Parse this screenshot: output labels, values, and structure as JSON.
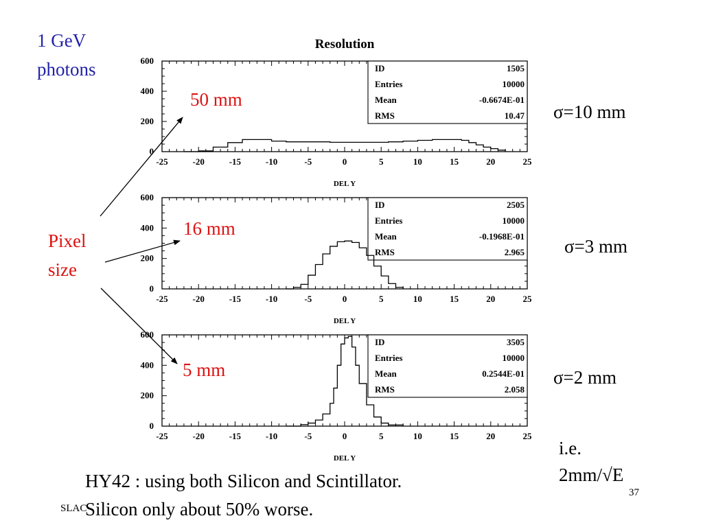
{
  "title": "Resolution",
  "energy_label": [
    "1 GeV",
    "photons"
  ],
  "pixel_label": [
    "Pixel",
    "size"
  ],
  "sizes": [
    "50 mm",
    "16 mm",
    "5 mm"
  ],
  "sigmas": [
    "σ=10 mm",
    "σ=3 mm",
    "σ=2 mm"
  ],
  "note": [
    "i.e.",
    "2mm/√E"
  ],
  "footer": [
    "HY42 : using both Silicon and Scintillator.",
    "Silicon only about 50% worse."
  ],
  "slac": "SLAC",
  "page_number": "37",
  "colors": {
    "blue": "#2222aa",
    "red": "#dd1111"
  },
  "chart_data": [
    {
      "type": "area",
      "xlabel": "DEL Y",
      "xlim": [
        -25,
        25
      ],
      "ylim": [
        0,
        600
      ],
      "xticks": [
        "-25",
        "-20",
        "-15",
        "-10",
        "-5",
        "0",
        "5",
        "10",
        "15",
        "20",
        "25"
      ],
      "yticks": [
        "600",
        "400",
        "200",
        "0"
      ],
      "stats": [
        [
          "ID",
          "1505"
        ],
        [
          "Entries",
          "10000"
        ],
        [
          "Mean",
          "-0.6674E-01"
        ],
        [
          "RMS",
          "10.47"
        ]
      ],
      "x": [
        -22,
        -20,
        -18,
        -16,
        -14,
        -12,
        -10,
        -8,
        -6,
        -4,
        -2,
        0,
        2,
        4,
        6,
        8,
        10,
        12,
        14,
        16,
        17,
        18,
        19,
        20,
        21,
        22
      ],
      "y": [
        0,
        5,
        30,
        60,
        80,
        80,
        70,
        65,
        65,
        65,
        62,
        62,
        62,
        62,
        65,
        70,
        75,
        80,
        80,
        75,
        60,
        45,
        30,
        20,
        10,
        0
      ]
    },
    {
      "type": "area",
      "xlabel": "DEL Y",
      "xlim": [
        -25,
        25
      ],
      "ylim": [
        0,
        600
      ],
      "xticks": [
        "-25",
        "-20",
        "-15",
        "-10",
        "-5",
        "0",
        "5",
        "10",
        "15",
        "20",
        "25"
      ],
      "yticks": [
        "600",
        "400",
        "200",
        "0"
      ],
      "stats": [
        [
          "ID",
          "2505"
        ],
        [
          "Entries",
          "10000"
        ],
        [
          "Mean",
          "-0.1968E-01"
        ],
        [
          "RMS",
          "2.965"
        ]
      ],
      "x": [
        -8,
        -7,
        -6,
        -5,
        -4,
        -3,
        -2,
        -1,
        0,
        1,
        2,
        3,
        4,
        5,
        6,
        7,
        8
      ],
      "y": [
        0,
        10,
        30,
        90,
        160,
        230,
        280,
        310,
        315,
        305,
        270,
        220,
        150,
        85,
        35,
        10,
        0
      ]
    },
    {
      "type": "area",
      "xlabel": "DEL Y",
      "xlim": [
        -25,
        25
      ],
      "ylim": [
        0,
        600
      ],
      "xticks": [
        "-25",
        "-20",
        "-15",
        "-10",
        "-5",
        "0",
        "5",
        "10",
        "15",
        "20",
        "25"
      ],
      "yticks": [
        "600",
        "400",
        "200",
        "0"
      ],
      "stats": [
        [
          "ID",
          "3505"
        ],
        [
          "Entries",
          "10000"
        ],
        [
          "Mean",
          "0.2544E-01"
        ],
        [
          "RMS",
          "2.058"
        ]
      ],
      "x": [
        -8,
        -6,
        -5,
        -4,
        -3,
        -2,
        -1.5,
        -1,
        -0.5,
        0,
        0.5,
        1,
        1.5,
        2,
        3,
        4,
        5,
        6,
        8
      ],
      "y": [
        0,
        10,
        20,
        40,
        80,
        150,
        250,
        400,
        540,
        580,
        590,
        520,
        400,
        280,
        140,
        60,
        20,
        8,
        0
      ]
    }
  ]
}
